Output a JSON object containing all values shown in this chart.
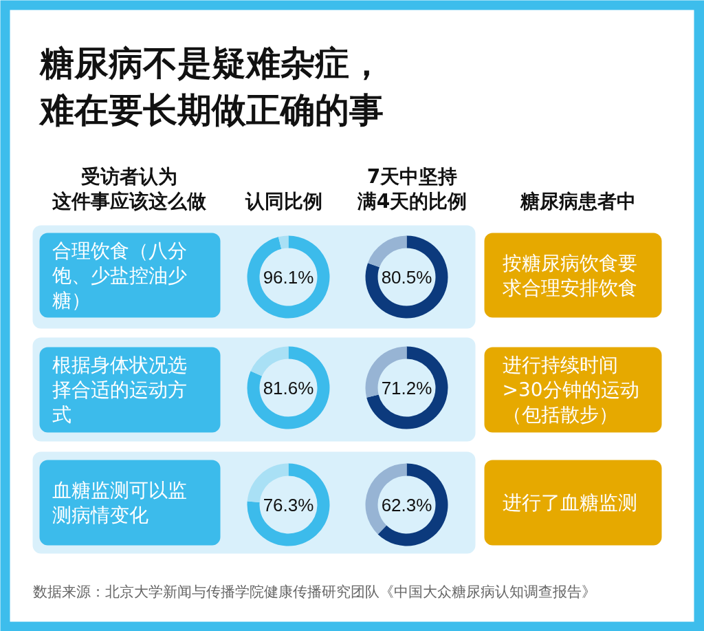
{
  "chart_data": [
    {
      "type": "other",
      "title": "糖尿病不是疑难杂症，难在要长期做正确的事"
    },
    {
      "type": "other",
      "annotations": [
        "受访者认为",
        "这件事应该这么做"
      ]
    },
    {
      "type": "other",
      "annotations": [
        "认同比例"
      ]
    },
    {
      "type": "other",
      "annotations": [
        "7天中坚持",
        "满4天的比例"
      ]
    },
    {
      "type": "other",
      "annotations": [
        "糖尿病患者中"
      ]
    },
    {
      "type": "other",
      "annotations": [
        "合理饮食（八分饱、少盐控油少糖）"
      ]
    },
    {
      "type": "donut",
      "categories": [
        null,
        null
      ],
      "values": [
        96.1,
        3.9
      ],
      "colors": [
        "#3cbbeb",
        "#a9e0f5"
      ],
      "value_labels": [
        "96.1%",
        null
      ]
    },
    {
      "type": "donut",
      "categories": [
        null,
        null
      ],
      "values": [
        80.5,
        19.5
      ],
      "colors": [
        "#0c3a7d",
        "#97b4d4"
      ],
      "value_labels": [
        "80.5%",
        null
      ]
    },
    {
      "type": "other",
      "annotations": [
        "按糖尿病饮食要求合理安排饮食"
      ]
    },
    {
      "type": "other",
      "annotations": [
        "根据身体状况选择合适的运动方式"
      ]
    },
    {
      "type": "donut",
      "categories": [
        null,
        null
      ],
      "values": [
        81.6,
        18.4
      ],
      "colors": [
        "#3cbbeb",
        "#a9e0f5"
      ],
      "value_labels": [
        "81.6%",
        null
      ]
    },
    {
      "type": "donut",
      "categories": [
        null,
        null
      ],
      "values": [
        71.2,
        28.8
      ],
      "colors": [
        "#0c3a7d",
        "#97b4d4"
      ],
      "value_labels": [
        "71.2%",
        null
      ]
    },
    {
      "type": "other",
      "annotations": [
        "进行持续时间>30分钟的运动（包括散步）"
      ]
    },
    {
      "type": "other",
      "annotations": [
        "血糖监测可以监测病情变化"
      ]
    },
    {
      "type": "donut",
      "categories": [
        null,
        null
      ],
      "values": [
        76.3,
        23.7
      ],
      "colors": [
        "#3cbbeb",
        "#a9e0f5"
      ],
      "value_labels": [
        "76.3%",
        null
      ]
    },
    {
      "type": "donut",
      "categories": [
        null,
        null
      ],
      "values": [
        62.3,
        37.7
      ],
      "colors": [
        "#0c3a7d",
        "#97b4d4"
      ],
      "value_labels": [
        "62.3%",
        null
      ]
    },
    {
      "type": "other",
      "annotations": [
        "进行了血糖监测"
      ]
    },
    {
      "type": "other",
      "annotations": [
        "数据来源：北京大学新闻与传播学院健康传播研究团队《中国大众糖尿病认知调查报告》"
      ]
    }
  ]
}
